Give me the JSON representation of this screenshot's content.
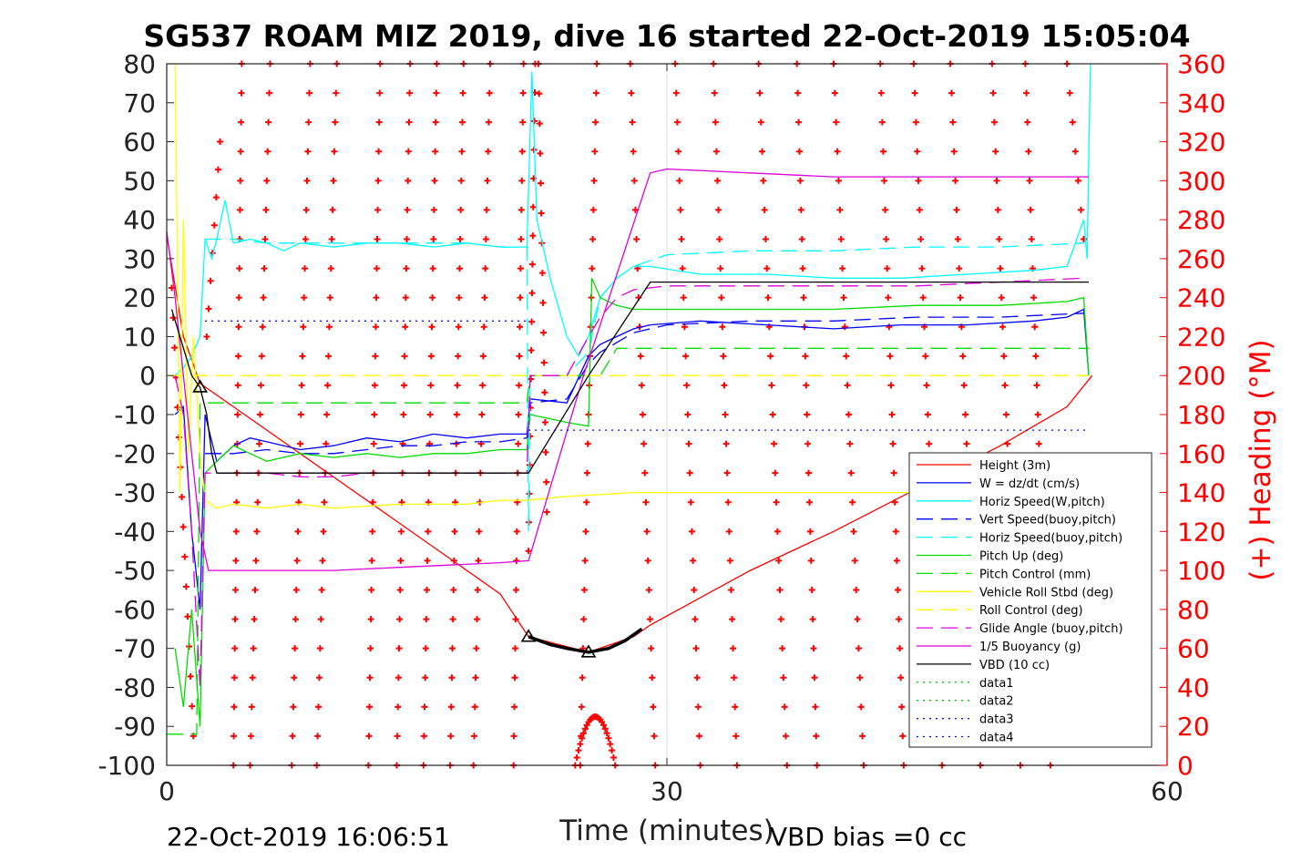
{
  "chart_data": {
    "type": "line",
    "title": "SG537 ROAM MIZ 2019, dive 16 started 22-Oct-2019 15:05:04",
    "xlabel": "Time (minutes)",
    "ylabel": "",
    "ylabel_right": "(+) Heading (°M)",
    "xlim": [
      0,
      60
    ],
    "ylim": [
      -100,
      80
    ],
    "ylim_right": [
      0,
      360
    ],
    "x_ticks": [
      "0",
      "30",
      "60"
    ],
    "x_tick_values": [
      0,
      30,
      60
    ],
    "y_ticks": [
      "80",
      "70",
      "60",
      "50",
      "40",
      "30",
      "20",
      "10",
      "0",
      "-10",
      "-20",
      "-30",
      "-40",
      "-50",
      "-60",
      "-70",
      "-80",
      "-90",
      "-100"
    ],
    "y_tick_values": [
      80,
      70,
      60,
      50,
      40,
      30,
      20,
      10,
      0,
      -10,
      -20,
      -30,
      -40,
      -50,
      -60,
      -70,
      -80,
      -90,
      -100
    ],
    "y_ticks_right": [
      "360",
      "340",
      "320",
      "300",
      "280",
      "260",
      "240",
      "220",
      "200",
      "180",
      "160",
      "140",
      "120",
      "100",
      "80",
      "60",
      "40",
      "20",
      "0"
    ],
    "y_tick_values_right": [
      360,
      340,
      320,
      300,
      280,
      260,
      240,
      220,
      200,
      180,
      160,
      140,
      120,
      100,
      80,
      60,
      40,
      20,
      0
    ],
    "grid": false,
    "legend_position": "bottom-right",
    "footer_left": "22-Oct-2019 16:06:51",
    "footer_right": "VBD bias =0 cc",
    "series": [
      {
        "name": "Height (3m)",
        "color": "#ff0000",
        "dash": "solid",
        "x": [
          0,
          1,
          2,
          3,
          10,
          15,
          20,
          21.7,
          25.3,
          28,
          29,
          35,
          40,
          45,
          50,
          54,
          55.5
        ],
        "y": [
          36,
          10,
          -2,
          -5,
          -26,
          -41,
          -56,
          -67,
          -71,
          -67,
          -64,
          -50,
          -40,
          -29,
          -18,
          -8,
          0
        ]
      },
      {
        "name": "W = dz/dt (cm/s)",
        "color": "#0000ff",
        "dash": "solid",
        "x": [
          0.5,
          1,
          1.5,
          2,
          2.3,
          3,
          4,
          5,
          6,
          8,
          10,
          12,
          14,
          16,
          18,
          20,
          21.6,
          21.8,
          24,
          25.3,
          26,
          27,
          28,
          29,
          32,
          36,
          40,
          44,
          48,
          52,
          54,
          55,
          55.3
        ],
        "y": [
          -10,
          -8,
          -40,
          -60,
          -10,
          -22,
          -18,
          -16,
          -17,
          -19,
          -18,
          -16,
          -17,
          -15,
          -16,
          -15,
          -15,
          -6,
          -7,
          5,
          8,
          10,
          12,
          13,
          14,
          13,
          12,
          13,
          13,
          14,
          15,
          17,
          0
        ]
      },
      {
        "name": "Horiz Speed(W,pitch)",
        "color": "#00ffff",
        "dash": "solid",
        "x": [
          0.5,
          1,
          1.5,
          2,
          2.3,
          2.7,
          3,
          3.5,
          4,
          5,
          6,
          7,
          8,
          10,
          12,
          14,
          16,
          18,
          20,
          21.6,
          21.9,
          22.2,
          23,
          24,
          24.7,
          25.3,
          26,
          27,
          28,
          29,
          32,
          36,
          40,
          44,
          48,
          52,
          54,
          55,
          55.2,
          55.4
        ],
        "y": [
          0,
          2,
          5,
          10,
          35,
          30,
          35,
          45,
          34,
          35,
          34,
          32,
          34,
          33,
          34,
          34,
          33,
          34,
          33,
          33,
          78,
          40,
          25,
          10,
          5,
          10,
          20,
          25,
          28,
          28,
          26,
          26,
          25,
          25,
          26,
          27,
          28,
          40,
          30,
          80
        ]
      },
      {
        "name": "Vert Speed(buoy,pitch)",
        "color": "#0000ff",
        "dash": "dashed",
        "x": [
          2.3,
          4,
          6,
          8,
          10,
          12,
          14,
          16,
          18,
          20,
          21.6,
          21.8,
          24,
          25.3,
          26,
          28,
          30,
          35,
          40,
          45,
          50,
          55
        ],
        "y": [
          -20,
          -20,
          -19,
          -20,
          -20,
          -19,
          -18,
          -18,
          -17,
          -17,
          -16,
          -7,
          -6,
          3,
          6,
          11,
          13,
          14,
          14,
          15,
          15,
          16
        ]
      },
      {
        "name": "Horiz Speed(buoy,pitch)",
        "color": "#00ffff",
        "dash": "dashed",
        "x": [
          2.3,
          4,
          6,
          8,
          10,
          12,
          14,
          16,
          18,
          20,
          21.6,
          21.7,
          21.8,
          24,
          25.3,
          26,
          27,
          28,
          30,
          35,
          40,
          45,
          50,
          55
        ],
        "y": [
          35,
          35,
          34,
          34,
          34,
          34,
          34,
          34,
          34,
          33,
          33,
          -40,
          0,
          0,
          6,
          20,
          25,
          28,
          31,
          32,
          32,
          33,
          33,
          34
        ]
      },
      {
        "name": "Pitch Up (deg)",
        "color": "#00dd00",
        "dash": "solid",
        "x": [
          0.5,
          1,
          1.5,
          2,
          2.3,
          3,
          4,
          5,
          6,
          8,
          10,
          12,
          14,
          16,
          18,
          20,
          21.6,
          21.8,
          24,
          25.3,
          25.5,
          26,
          27,
          28,
          30,
          35,
          40,
          45,
          50,
          54,
          55,
          55.3
        ],
        "y": [
          -70,
          -85,
          -60,
          -90,
          -25,
          -22,
          -18,
          -20,
          -22,
          -20,
          -21,
          -20,
          -21,
          -20,
          -20,
          -19,
          -19,
          -10,
          -12,
          -13,
          25,
          20,
          18,
          17,
          17,
          17,
          17,
          18,
          18,
          19,
          20,
          0
        ]
      },
      {
        "name": "Pitch Control (mm)",
        "color": "#00dd00",
        "dash": "dashed",
        "x": [
          0,
          1.8,
          2,
          2.3,
          21.6,
          21.8,
          26,
          27,
          55.3
        ],
        "y": [
          -92,
          -92,
          -7,
          -7,
          -7,
          0,
          0,
          7,
          7
        ]
      },
      {
        "name": "Vehicle Roll Stbd (deg)",
        "color": "#ffff00",
        "dash": "solid",
        "x": [
          0.5,
          0.8,
          1,
          1.3,
          1.6,
          2,
          2.3,
          3,
          4,
          6,
          8,
          10,
          14,
          18,
          20,
          21.6,
          24,
          28,
          32,
          36,
          40,
          44,
          48,
          52,
          55
        ],
        "y": [
          80,
          -30,
          40,
          -20,
          10,
          -20,
          -32,
          -34,
          -33,
          -34,
          -33,
          -34,
          -33,
          -33,
          -32,
          -32,
          -31,
          -30,
          -30,
          -30,
          -30,
          -30,
          -30,
          -30,
          -29
        ]
      },
      {
        "name": "Roll Control (deg)",
        "color": "#ffff00",
        "dash": "dashed",
        "x": [
          0,
          55.3
        ],
        "y": [
          0,
          0
        ]
      },
      {
        "name": "Glide Angle (buoy,pitch)",
        "color": "#dd00dd",
        "dash": "dashed",
        "x": [
          0.5,
          1,
          1.5,
          2,
          2.3,
          4,
          6,
          8,
          10,
          12,
          14,
          16,
          18,
          20,
          21.6,
          21.8,
          24,
          25.3,
          26,
          27,
          28,
          30,
          35,
          40,
          45,
          50,
          55
        ],
        "y": [
          0,
          -10,
          -40,
          -80,
          -25,
          -25,
          -25,
          -26,
          -26,
          -25,
          -25,
          -25,
          -25,
          -25,
          -25,
          0,
          0,
          10,
          15,
          20,
          22,
          23,
          23,
          23,
          23,
          24,
          25
        ]
      },
      {
        "name": "1/5 Buoyancy (g)",
        "color": "#dd00dd",
        "dash": "solid",
        "x": [
          0,
          0.5,
          1,
          1.5,
          2,
          2.5,
          3,
          5,
          10,
          15,
          20,
          21.7,
          25,
          29,
          30,
          35,
          40,
          45,
          50,
          55.3
        ],
        "y": [
          37,
          20,
          0,
          -20,
          -40,
          -50,
          -50,
          -50,
          -50,
          -49,
          -48,
          -47.5,
          0,
          52,
          53,
          52,
          51,
          51,
          51,
          51
        ]
      },
      {
        "name": "VBD (10 cc)",
        "color": "#000000",
        "dash": "solid",
        "x": [
          0.3,
          1.5,
          2,
          2.4,
          2.7,
          3,
          5,
          10,
          15,
          20,
          21.7,
          25.3,
          29,
          35,
          40,
          45,
          50,
          55.3
        ],
        "y": [
          17,
          0,
          -3,
          -10,
          -20,
          -25,
          -25,
          -25,
          -25,
          -25,
          -25,
          0,
          24,
          24,
          24,
          24,
          24,
          24
        ]
      },
      {
        "name": "data1",
        "color": "#00cc00",
        "dash": "dotted",
        "x": [],
        "y": []
      },
      {
        "name": "data2",
        "color": "#00cc00",
        "dash": "dotted",
        "x": [],
        "y": []
      },
      {
        "name": "data3",
        "color": "#0000ff",
        "dash": "dotted",
        "x": [
          2.3,
          21.7
        ],
        "y": [
          14,
          14
        ]
      },
      {
        "name": "data4",
        "color": "#0000ff",
        "dash": "dotted",
        "x": [
          21.7,
          55.3
        ],
        "y": [
          -14,
          -14
        ]
      }
    ],
    "heading_color": "#ff0000",
    "heading_sweeps": [
      {
        "x0": 0.3,
        "x1": 1.6,
        "h0": 245,
        "h1": 15
      },
      {
        "x0": 2.4,
        "x1": 3.2,
        "h0": 220,
        "h1": 320
      },
      {
        "x0": 4.0,
        "x1": 4.5,
        "h0": 0,
        "h1": 360
      },
      {
        "x0": 5.0,
        "x1": 6.2,
        "h0": 0,
        "h1": 360
      },
      {
        "x0": 7.5,
        "x1": 8.6,
        "h0": 0,
        "h1": 360
      },
      {
        "x0": 9.0,
        "x1": 10.2,
        "h0": 0,
        "h1": 360
      },
      {
        "x0": 12.1,
        "x1": 12.8,
        "h0": 0,
        "h1": 360
      },
      {
        "x0": 13.8,
        "x1": 14.6,
        "h0": 0,
        "h1": 360
      },
      {
        "x0": 15.4,
        "x1": 16.2,
        "h0": 0,
        "h1": 360
      },
      {
        "x0": 17.0,
        "x1": 17.8,
        "h0": 0,
        "h1": 360
      },
      {
        "x0": 18.4,
        "x1": 19.4,
        "h0": 0,
        "h1": 360
      },
      {
        "x0": 20.8,
        "x1": 21.4,
        "h0": 0,
        "h1": 360
      },
      {
        "x0": 21.7,
        "x1": 22.1,
        "h0": 110,
        "h1": 360
      },
      {
        "x0": 22.3,
        "x1": 22.8,
        "h0": 360,
        "h1": 130
      },
      {
        "x0": 24.8,
        "x1": 25.8,
        "h0": 0,
        "h1": 360
      },
      {
        "x0": 27.8,
        "x1": 29.3,
        "h0": 360,
        "h1": 0
      },
      {
        "x0": 30.5,
        "x1": 32.0,
        "h0": 360,
        "h1": 0
      },
      {
        "x0": 32.8,
        "x1": 34.2,
        "h0": 360,
        "h1": 0
      },
      {
        "x0": 35.5,
        "x1": 37.2,
        "h0": 360,
        "h1": 0
      },
      {
        "x0": 37.8,
        "x1": 39.0,
        "h0": 360,
        "h1": 0
      },
      {
        "x0": 40.0,
        "x1": 41.8,
        "h0": 360,
        "h1": 0
      },
      {
        "x0": 42.8,
        "x1": 44.2,
        "h0": 360,
        "h1": 0
      },
      {
        "x0": 44.8,
        "x1": 46.5,
        "h0": 360,
        "h1": 0
      },
      {
        "x0": 47.0,
        "x1": 48.8,
        "h0": 360,
        "h1": 0
      },
      {
        "x0": 49.5,
        "x1": 51.2,
        "h0": 360,
        "h1": 0
      },
      {
        "x0": 51.5,
        "x1": 53.0,
        "h0": 360,
        "h1": 0
      },
      {
        "x0": 54.0,
        "x1": 55.0,
        "h0": 360,
        "h1": 270
      }
    ],
    "heading_hump": {
      "x0": 24.5,
      "xpeak": 25.7,
      "x1": 26.9,
      "hpeak": 25
    },
    "triangle_markers": [
      {
        "x": 2.0,
        "y": -3
      },
      {
        "x": 21.7,
        "y": -67
      },
      {
        "x": 25.3,
        "y": -71
      }
    ],
    "thick_segment": {
      "x": [
        21.7,
        23,
        24,
        25.3,
        26.5,
        27.5,
        28.5
      ],
      "y": [
        -67,
        -69,
        -70,
        -71,
        -70,
        -68,
        -65
      ]
    }
  }
}
